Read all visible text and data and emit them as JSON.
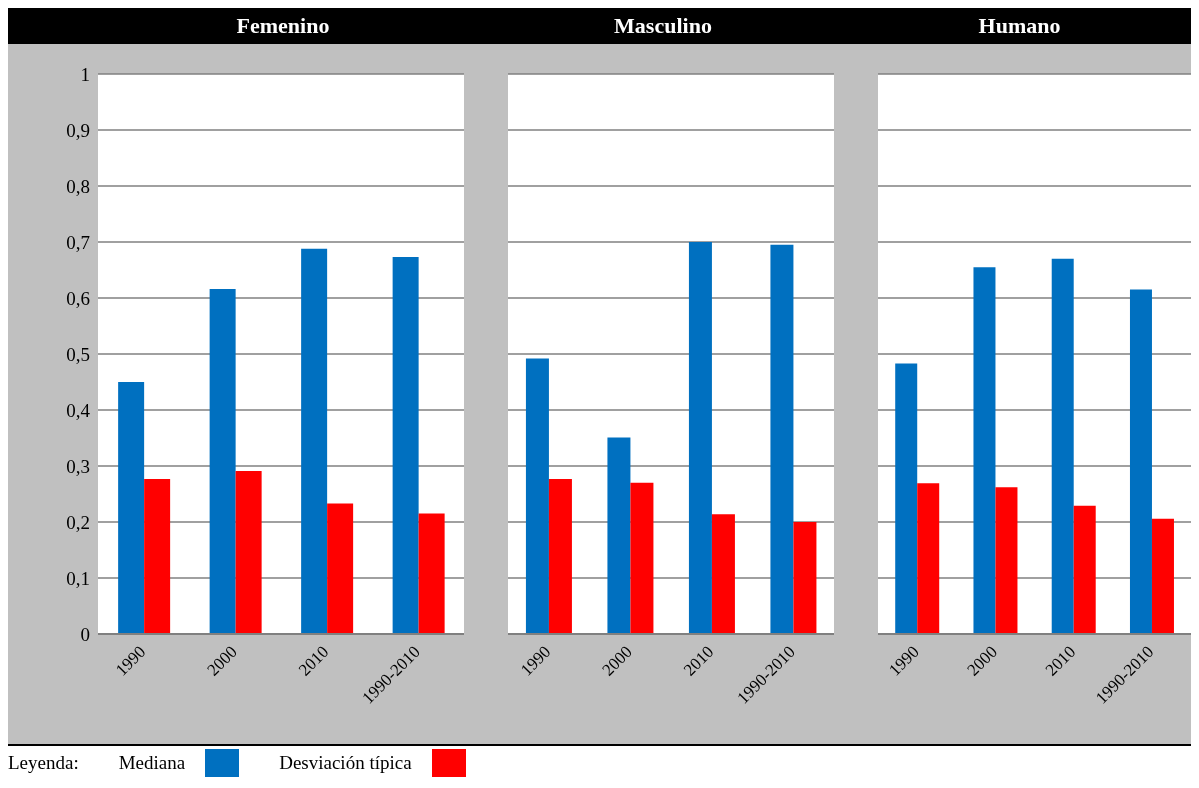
{
  "chart_data": [
    {
      "type": "bar",
      "title": "Femenino",
      "categories": [
        "1990",
        "2000",
        "2010",
        "1990-2010"
      ],
      "legend_title": "Leyenda:",
      "legend": "bottom",
      "grid": "y",
      "ylim": [
        0,
        1
      ],
      "yticks": [
        0,
        {
          "value": 0.1,
          "label": "0,1"
        },
        {
          "value": 0.2,
          "label": "0,2"
        },
        {
          "value": 0.3,
          "label": "0,3"
        },
        {
          "value": 0.4,
          "label": "0,4"
        },
        {
          "value": 0.5,
          "label": "0,5"
        },
        {
          "value": 0.6,
          "label": "0,6"
        },
        {
          "value": 0.7,
          "label": "0,7"
        },
        {
          "value": 0.8,
          "label": "0,8"
        },
        {
          "value": 0.9,
          "label": "0,9"
        },
        1
      ],
      "series": [
        {
          "name": "Mediana",
          "color": "#0070c0",
          "values": [
            0.45,
            0.616,
            0.688,
            0.673
          ]
        },
        {
          "name": "Desviación típica",
          "color": "#ff0000",
          "values": [
            0.277,
            0.291,
            0.233,
            0.215
          ]
        }
      ]
    },
    {
      "type": "bar",
      "title": "Masculino",
      "categories": [
        "1990",
        "2000",
        "2010",
        "1990-2010"
      ],
      "grid": "y",
      "tick_labels": "x",
      "ylim": [
        0,
        1
      ],
      "yticks": [
        0,
        0.1,
        0.2,
        0.3,
        0.4,
        0.5,
        0.6,
        0.7,
        0.8,
        0.9,
        1
      ],
      "series": [
        {
          "color": "#0070c0",
          "values": [
            0.492,
            0.351,
            0.7,
            0.695
          ]
        },
        {
          "color": "#ff0000",
          "values": [
            0.277,
            0.27,
            0.214,
            0.2
          ]
        }
      ]
    },
    {
      "type": "bar",
      "title": "Humano",
      "categories": [
        "1990",
        "2000",
        "2010",
        "1990-2010"
      ],
      "grid": "y",
      "tick_labels": "x",
      "ylim": [
        0,
        1
      ],
      "yticks": [
        0,
        0.1,
        0.2,
        0.3,
        0.4,
        0.5,
        0.6,
        0.7,
        0.8,
        0.9,
        1
      ],
      "series": [
        {
          "color": "#0070c0",
          "values": [
            0.483,
            0.655,
            0.67,
            0.615
          ]
        },
        {
          "color": "#ff0000",
          "values": [
            0.269,
            0.262,
            0.229,
            0.206
          ]
        }
      ]
    }
  ]
}
